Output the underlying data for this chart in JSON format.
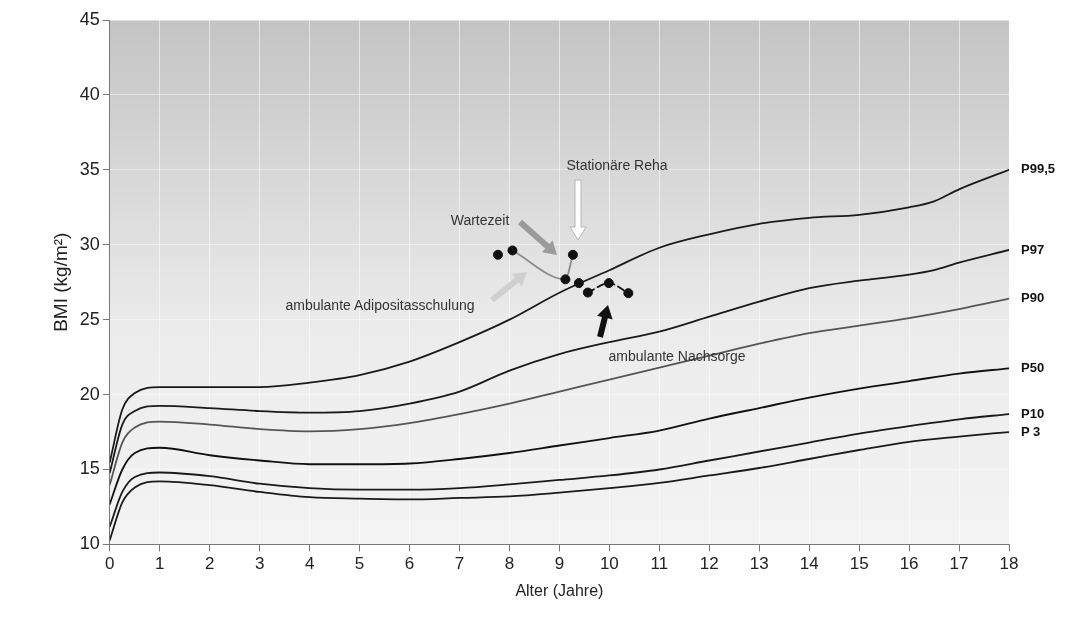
{
  "chart_data": {
    "type": "line",
    "xlabel": "Alter (Jahre)",
    "ylabel": "BMI (kg/m²)",
    "xlim": [
      0,
      18
    ],
    "ylim": [
      10,
      45
    ],
    "xticks": [
      0,
      1,
      2,
      3,
      4,
      5,
      6,
      7,
      8,
      9,
      10,
      11,
      12,
      13,
      14,
      15,
      16,
      17,
      18
    ],
    "yticks": [
      10,
      15,
      20,
      25,
      30,
      35,
      40,
      45
    ],
    "grid": true,
    "legend": false,
    "series": [
      {
        "name": "P99,5",
        "marker": "none",
        "line_style": "solid",
        "color": "#1a1a1a",
        "x": [
          0,
          0.25,
          0.5,
          1,
          2,
          3,
          4,
          5,
          6,
          7,
          8,
          9,
          10,
          11,
          12,
          13,
          14,
          15,
          16,
          16.5,
          17,
          18
        ],
        "values": [
          15.5,
          19,
          20.1,
          20.5,
          20.5,
          20.5,
          20.8,
          21.3,
          22.2,
          23.5,
          25,
          26.8,
          28.3,
          29.8,
          30.7,
          31.4,
          31.8,
          32,
          32.5,
          32.9,
          33.7,
          35
        ]
      },
      {
        "name": "P97",
        "marker": "none",
        "line_style": "solid",
        "color": "#1a1a1a",
        "x": [
          0,
          0.25,
          0.5,
          1,
          2,
          3,
          4,
          5,
          6,
          7,
          8,
          9,
          10,
          11,
          12,
          13,
          14,
          15,
          16,
          16.5,
          17,
          18
        ],
        "values": [
          14.8,
          18,
          18.9,
          19.25,
          19.1,
          18.9,
          18.8,
          18.9,
          19.4,
          20.2,
          21.6,
          22.7,
          23.5,
          24.2,
          25.2,
          26.2,
          27.1,
          27.6,
          28,
          28.3,
          28.8,
          29.65
        ]
      },
      {
        "name": "P90",
        "marker": "none",
        "line_style": "solid",
        "color": "#555555",
        "x": [
          0,
          0.25,
          0.5,
          1,
          2,
          3,
          4,
          5,
          6,
          7,
          8,
          9,
          10,
          11,
          12,
          13,
          14,
          15,
          16,
          17,
          18
        ],
        "values": [
          14,
          16.8,
          17.8,
          18.2,
          18,
          17.7,
          17.55,
          17.7,
          18.1,
          18.7,
          19.4,
          20.2,
          21,
          21.8,
          22.6,
          23.4,
          24.1,
          24.6,
          25.1,
          25.7,
          26.4
        ]
      },
      {
        "name": "P50",
        "marker": "none",
        "line_style": "solid",
        "color": "#111111",
        "x": [
          0,
          0.25,
          0.5,
          1,
          2,
          3,
          4,
          5,
          6,
          7,
          8,
          9,
          10,
          11,
          12,
          13,
          14,
          15,
          16,
          17,
          18
        ],
        "values": [
          12.7,
          15,
          16.1,
          16.45,
          15.95,
          15.6,
          15.35,
          15.35,
          15.4,
          15.7,
          16.1,
          16.6,
          17.1,
          17.6,
          18.4,
          19.1,
          19.8,
          20.4,
          20.9,
          21.4,
          21.75
        ]
      },
      {
        "name": "P10",
        "marker": "none",
        "line_style": "solid",
        "color": "#1a1a1a",
        "x": [
          0,
          0.25,
          0.5,
          1,
          2,
          3,
          4,
          5,
          6,
          7,
          8,
          9,
          10,
          11,
          12,
          13,
          14,
          15,
          16,
          17,
          18
        ],
        "values": [
          11.2,
          13.5,
          14.5,
          14.8,
          14.55,
          14.05,
          13.75,
          13.65,
          13.65,
          13.75,
          14,
          14.3,
          14.6,
          15,
          15.6,
          16.2,
          16.8,
          17.4,
          17.9,
          18.35,
          18.7
        ]
      },
      {
        "name": "P 3",
        "marker": "none",
        "line_style": "solid",
        "color": "#1a1a1a",
        "x": [
          0,
          0.25,
          0.5,
          1,
          2,
          3,
          4,
          5,
          6,
          7,
          8,
          9,
          10,
          11,
          12,
          13,
          14,
          15,
          16,
          17,
          18
        ],
        "values": [
          10.3,
          12.8,
          13.8,
          14.2,
          13.95,
          13.5,
          13.15,
          13.05,
          13,
          13.1,
          13.2,
          13.45,
          13.75,
          14.1,
          14.6,
          15.1,
          15.7,
          16.3,
          16.85,
          17.2,
          17.5
        ]
      },
      {
        "type": "line",
        "marker": "none",
        "line_style": "solid",
        "color": "#8c8c8c",
        "x": [
          8.06,
          9.12,
          9.27
        ],
        "values": [
          29.62,
          27.69,
          29.33
        ]
      },
      {
        "type": "line",
        "marker": "none",
        "line_style": "dashed",
        "color": "#111111",
        "x": [
          9.57,
          9.99,
          10.38
        ],
        "values": [
          26.81,
          27.44,
          26.77
        ]
      },
      {
        "type": "scatter",
        "marker": "circle",
        "color": "#111111",
        "x": [
          7.77,
          8.06,
          9.12,
          9.27,
          9.39,
          9.57,
          9.99,
          10.38
        ],
        "values": [
          29.33,
          29.62,
          27.69,
          29.33,
          27.44,
          26.81,
          27.44,
          26.77
        ]
      }
    ],
    "annotations": [
      "Wartezeit",
      "Stationäre Reha",
      "ambulante Adipositasschulung",
      "ambulante Nachsorge"
    ]
  }
}
